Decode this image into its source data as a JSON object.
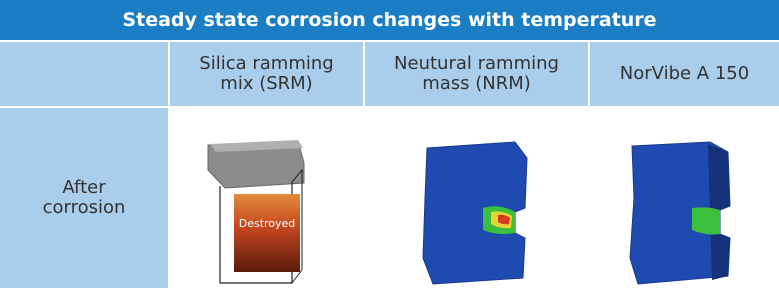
{
  "table": {
    "title": "Steady state corrosion changes with temperature",
    "columns": [
      "Silica ramming mix (SRM)",
      "Neutural ramming mass (NRM)",
      "NorVibe A 150"
    ],
    "rows": [
      {
        "label": "After corrosion",
        "image_annotation": "Destroyed"
      }
    ]
  }
}
